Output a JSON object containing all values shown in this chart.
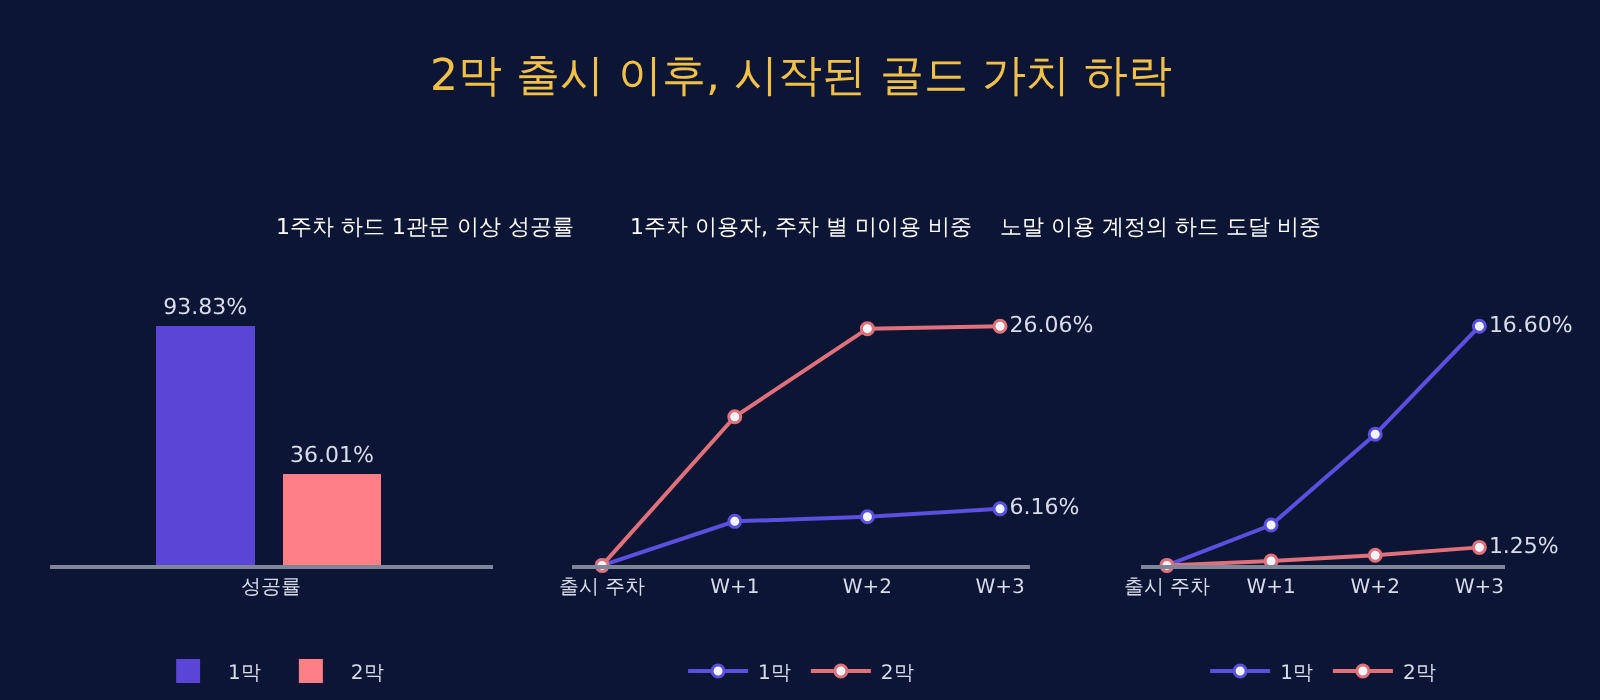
{
  "chart_data": [
    {
      "type": "bar",
      "title": "1주차 하드 1관문 이상 성공률",
      "xlabel": "성공률",
      "categories": [
        null,
        null
      ],
      "stacked": true,
      "data_labels": true,
      "legend": "bottom",
      "grid": false,
      "series": [
        {
          "name": "1막",
          "color": "#5a45d6",
          "values": [
            93.83,
            null
          ],
          "value_labels": [
            "93.83%",
            null
          ]
        },
        {
          "name": "2막",
          "color": "#ff7f86",
          "values": [
            null,
            36.01
          ],
          "value_labels": [
            null,
            "36.01%"
          ]
        }
      ]
    },
    {
      "type": "line",
      "title": "2막 출시 이후, 시작된 골드 가치 하락",
      "subtitle": "1주차 이용자, 주차 별 미이용 비중",
      "categories": [
        "출시 주차",
        "W+1",
        "W+2",
        "W+3"
      ],
      "legend": "bottom",
      "grid": false,
      "marker": "circle",
      "line_style": "solid",
      "series": [
        {
          "name": "1막",
          "color": "#5b4fe0",
          "values": [
            0,
            4.8,
            5.3,
            6.16
          ],
          "value_labels": [
            null,
            null,
            null,
            "6.16%"
          ]
        },
        {
          "name": "2막",
          "color": "#e0707a",
          "values": [
            0,
            16.2,
            25.8,
            26.06
          ],
          "value_labels": [
            null,
            null,
            null,
            "26.06%"
          ]
        }
      ]
    },
    {
      "type": "line",
      "title": "노말 이용 계정의 하드 도달 비중",
      "categories": [
        "출시 주차",
        "W+1",
        "W+2",
        "W+3"
      ],
      "legend": "bottom",
      "grid": false,
      "marker": "circle",
      "line_style": "solid",
      "series": [
        {
          "name": "1막",
          "color": "#5b4fe0",
          "values": [
            0,
            2.8,
            9.1,
            16.6
          ],
          "value_labels": [
            null,
            null,
            null,
            "16.60%"
          ]
        },
        {
          "name": "2막",
          "color": "#e0707a",
          "values": [
            0,
            0.3,
            0.7,
            1.25
          ],
          "value_labels": [
            null,
            null,
            null,
            "1.25%"
          ]
        }
      ]
    }
  ]
}
